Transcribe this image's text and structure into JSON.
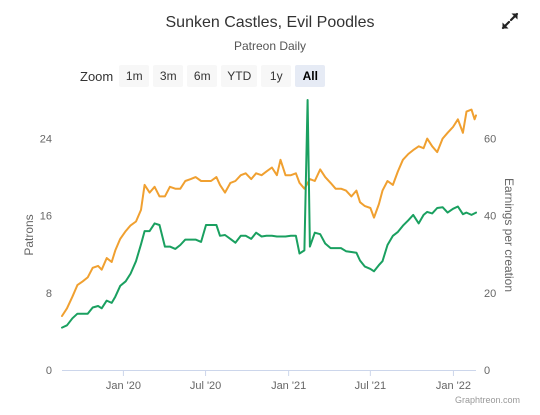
{
  "header": {
    "title": "Sunken Castles, Evil Poodles",
    "subtitle": "Patreon Daily"
  },
  "zoom": {
    "label": "Zoom",
    "buttons": [
      "1m",
      "3m",
      "6m",
      "YTD",
      "1y",
      "All"
    ],
    "selected": "All"
  },
  "icons": {
    "expand": "expand-arrows-icon"
  },
  "credits": "Graphtreon.com",
  "chart_data": {
    "type": "line",
    "x_axis": {
      "tick_labels": [
        "Jan '20",
        "Jul '20",
        "Jan '21",
        "Jul '21",
        "Jan '22"
      ],
      "ticks": [
        "2020-01-01",
        "2020-07-01",
        "2021-01-01",
        "2021-07-01",
        "2022-01-01"
      ],
      "range": [
        "2019-08-18",
        "2022-02-20"
      ]
    },
    "y_axis_left": {
      "title": "Patrons",
      "ticks": [
        0,
        8,
        16,
        24
      ],
      "range": [
        0,
        28
      ]
    },
    "y_axis_right": {
      "title": "Earnings per creation",
      "ticks": [
        0,
        20,
        40,
        60
      ],
      "range": [
        0,
        70
      ]
    },
    "grid": false,
    "series": [
      {
        "axis": "left",
        "color": "#f0a030",
        "points": [
          [
            "2019-08-18",
            5.6
          ],
          [
            "2019-08-29",
            6.4
          ],
          [
            "2019-09-10",
            7.6
          ],
          [
            "2019-09-21",
            8.8
          ],
          [
            "2019-10-03",
            9.2
          ],
          [
            "2019-10-14",
            9.6
          ],
          [
            "2019-10-25",
            10.6
          ],
          [
            "2019-11-06",
            10.8
          ],
          [
            "2019-11-14",
            10.4
          ],
          [
            "2019-11-25",
            11.6
          ],
          [
            "2019-12-06",
            11.2
          ],
          [
            "2019-12-14",
            12.4
          ],
          [
            "2019-12-25",
            13.6
          ],
          [
            "2020-01-06",
            14.4
          ],
          [
            "2020-01-17",
            15.0
          ],
          [
            "2020-01-29",
            15.4
          ],
          [
            "2020-02-09",
            16.6
          ],
          [
            "2020-02-17",
            19.2
          ],
          [
            "2020-02-28",
            18.4
          ],
          [
            "2020-03-10",
            19.0
          ],
          [
            "2020-03-21",
            18.0
          ],
          [
            "2020-04-02",
            18.0
          ],
          [
            "2020-04-13",
            19.0
          ],
          [
            "2020-04-25",
            18.8
          ],
          [
            "2020-05-06",
            18.8
          ],
          [
            "2020-05-17",
            19.6
          ],
          [
            "2020-05-29",
            19.8
          ],
          [
            "2020-06-09",
            20.0
          ],
          [
            "2020-06-21",
            19.6
          ],
          [
            "2020-07-02",
            19.6
          ],
          [
            "2020-07-13",
            19.6
          ],
          [
            "2020-07-25",
            20.0
          ],
          [
            "2020-08-02",
            19.2
          ],
          [
            "2020-08-13",
            18.4
          ],
          [
            "2020-08-25",
            19.4
          ],
          [
            "2020-09-05",
            19.6
          ],
          [
            "2020-09-17",
            20.2
          ],
          [
            "2020-09-28",
            20.4
          ],
          [
            "2020-10-10",
            19.8
          ],
          [
            "2020-10-21",
            20.4
          ],
          [
            "2020-11-02",
            20.2
          ],
          [
            "2020-11-13",
            20.6
          ],
          [
            "2020-11-25",
            21.0
          ],
          [
            "2020-12-06",
            20.2
          ],
          [
            "2020-12-14",
            21.8
          ],
          [
            "2020-12-25",
            20.2
          ],
          [
            "2021-01-06",
            20.2
          ],
          [
            "2021-01-17",
            20.4
          ],
          [
            "2021-01-25",
            19.4
          ],
          [
            "2021-02-05",
            18.8
          ],
          [
            "2021-02-17",
            19.8
          ],
          [
            "2021-02-28",
            19.6
          ],
          [
            "2021-03-12",
            20.8
          ],
          [
            "2021-03-23",
            20.0
          ],
          [
            "2021-04-04",
            19.4
          ],
          [
            "2021-04-15",
            18.8
          ],
          [
            "2021-04-27",
            18.8
          ],
          [
            "2021-05-08",
            18.6
          ],
          [
            "2021-05-20",
            18.0
          ],
          [
            "2021-05-31",
            18.6
          ],
          [
            "2021-06-08",
            17.4
          ],
          [
            "2021-06-19",
            17.0
          ],
          [
            "2021-07-01",
            16.8
          ],
          [
            "2021-07-09",
            15.8
          ],
          [
            "2021-07-20",
            17.2
          ],
          [
            "2021-07-28",
            18.6
          ],
          [
            "2021-08-08",
            19.6
          ],
          [
            "2021-08-20",
            19.2
          ],
          [
            "2021-08-31",
            20.6
          ],
          [
            "2021-09-11",
            21.8
          ],
          [
            "2021-09-23",
            22.4
          ],
          [
            "2021-10-04",
            22.8
          ],
          [
            "2021-10-16",
            23.2
          ],
          [
            "2021-10-27",
            23.0
          ],
          [
            "2021-11-04",
            24.0
          ],
          [
            "2021-11-15",
            23.2
          ],
          [
            "2021-11-26",
            22.6
          ],
          [
            "2021-12-08",
            24.0
          ],
          [
            "2021-12-19",
            24.6
          ],
          [
            "2021-12-31",
            25.2
          ],
          [
            "2022-01-11",
            26.0
          ],
          [
            "2022-01-22",
            24.6
          ],
          [
            "2022-01-30",
            26.8
          ],
          [
            "2022-02-10",
            27.0
          ],
          [
            "2022-02-17",
            26.0
          ],
          [
            "2022-02-20",
            26.4
          ]
        ]
      },
      {
        "axis": "right",
        "color": "#1aa060",
        "points": [
          [
            "2019-08-18",
            11.0
          ],
          [
            "2019-08-29",
            11.6
          ],
          [
            "2019-09-10",
            13.4
          ],
          [
            "2019-09-21",
            14.6
          ],
          [
            "2019-10-03",
            14.6
          ],
          [
            "2019-10-14",
            14.6
          ],
          [
            "2019-10-25",
            16.2
          ],
          [
            "2019-11-06",
            16.6
          ],
          [
            "2019-11-14",
            16.0
          ],
          [
            "2019-11-25",
            18.0
          ],
          [
            "2019-12-06",
            17.4
          ],
          [
            "2019-12-14",
            19.0
          ],
          [
            "2019-12-25",
            21.8
          ],
          [
            "2020-01-06",
            23.0
          ],
          [
            "2020-01-17",
            25.0
          ],
          [
            "2020-01-29",
            28.2
          ],
          [
            "2020-02-09",
            32.6
          ],
          [
            "2020-02-17",
            36.0
          ],
          [
            "2020-02-28",
            36.0
          ],
          [
            "2020-03-10",
            38.0
          ],
          [
            "2020-03-21",
            37.6
          ],
          [
            "2020-04-02",
            32.0
          ],
          [
            "2020-04-13",
            32.0
          ],
          [
            "2020-04-25",
            31.4
          ],
          [
            "2020-05-06",
            32.4
          ],
          [
            "2020-05-17",
            33.8
          ],
          [
            "2020-05-29",
            33.8
          ],
          [
            "2020-06-09",
            33.8
          ],
          [
            "2020-06-21",
            33.2
          ],
          [
            "2020-07-02",
            37.6
          ],
          [
            "2020-07-13",
            37.6
          ],
          [
            "2020-07-25",
            37.6
          ],
          [
            "2020-08-02",
            34.8
          ],
          [
            "2020-08-13",
            35.0
          ],
          [
            "2020-08-25",
            34.0
          ],
          [
            "2020-09-05",
            33.0
          ],
          [
            "2020-09-17",
            34.8
          ],
          [
            "2020-09-28",
            34.8
          ],
          [
            "2020-10-10",
            34.0
          ],
          [
            "2020-10-21",
            35.6
          ],
          [
            "2020-11-02",
            34.6
          ],
          [
            "2020-11-13",
            34.8
          ],
          [
            "2020-11-25",
            34.8
          ],
          [
            "2020-12-06",
            34.6
          ],
          [
            "2020-12-14",
            34.6
          ],
          [
            "2020-12-25",
            34.6
          ],
          [
            "2021-01-06",
            34.8
          ],
          [
            "2021-01-17",
            34.8
          ],
          [
            "2021-01-25",
            30.2
          ],
          [
            "2021-02-05",
            31.0
          ],
          [
            "2021-02-12",
            70.0
          ],
          [
            "2021-02-17",
            32.0
          ],
          [
            "2021-02-28",
            35.6
          ],
          [
            "2021-03-12",
            35.2
          ],
          [
            "2021-03-23",
            32.8
          ],
          [
            "2021-04-04",
            31.6
          ],
          [
            "2021-04-15",
            31.6
          ],
          [
            "2021-04-27",
            31.6
          ],
          [
            "2021-05-08",
            30.8
          ],
          [
            "2021-05-20",
            30.6
          ],
          [
            "2021-05-31",
            30.4
          ],
          [
            "2021-06-08",
            28.4
          ],
          [
            "2021-06-19",
            26.8
          ],
          [
            "2021-07-01",
            26.2
          ],
          [
            "2021-07-09",
            25.6
          ],
          [
            "2021-07-20",
            27.2
          ],
          [
            "2021-07-28",
            28.2
          ],
          [
            "2021-08-08",
            32.4
          ],
          [
            "2021-08-20",
            34.8
          ],
          [
            "2021-08-31",
            35.8
          ],
          [
            "2021-09-11",
            37.4
          ],
          [
            "2021-09-23",
            38.8
          ],
          [
            "2021-10-04",
            40.2
          ],
          [
            "2021-10-16",
            38.0
          ],
          [
            "2021-10-27",
            40.2
          ],
          [
            "2021-11-04",
            41.0
          ],
          [
            "2021-11-15",
            40.6
          ],
          [
            "2021-11-26",
            42.0
          ],
          [
            "2021-12-08",
            42.2
          ],
          [
            "2021-12-19",
            40.8
          ],
          [
            "2021-12-31",
            41.8
          ],
          [
            "2022-01-11",
            42.4
          ],
          [
            "2022-01-22",
            40.4
          ],
          [
            "2022-01-30",
            40.8
          ],
          [
            "2022-02-10",
            40.2
          ],
          [
            "2022-02-20",
            40.8
          ]
        ]
      }
    ]
  }
}
